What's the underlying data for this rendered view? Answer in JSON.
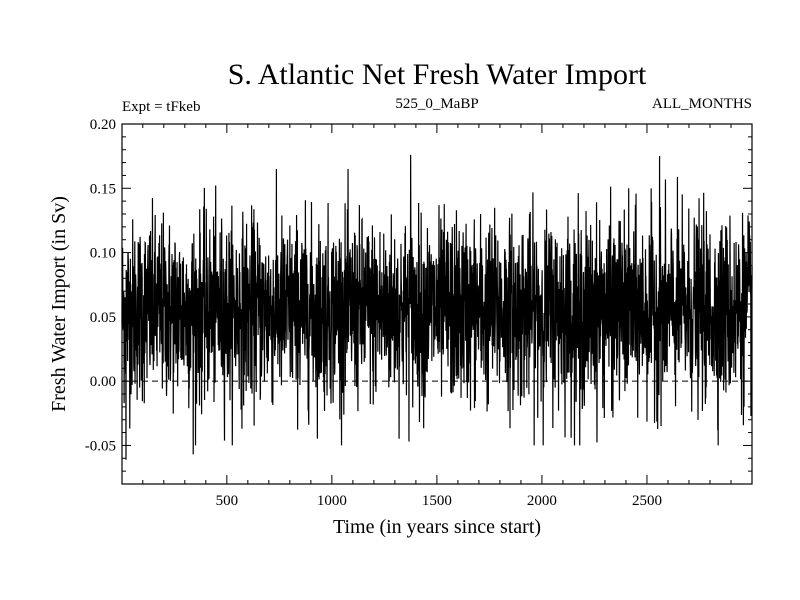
{
  "chart_data": {
    "type": "line",
    "title": "S. Atlantic Net Fresh Water Import",
    "subtitle_left": "Expt = tFkeb",
    "subtitle_center": "525_0_MaBP",
    "subtitle_right": "ALL_MONTHS",
    "xlabel": "Time (in years since start)",
    "ylabel": "Fresh Water Import (in Sv)",
    "xlim": [
      1,
      3000
    ],
    "ylim": [
      -0.08,
      0.2
    ],
    "xticks": [
      500,
      1000,
      1500,
      2000,
      2500
    ],
    "xtick_labels": [
      "500",
      "1000",
      "1500",
      "2000",
      "2500"
    ],
    "yticks": [
      -0.05,
      0.0,
      0.05,
      0.1,
      0.15,
      0.2
    ],
    "ytick_labels": [
      "-0.05",
      "0.00",
      "0.05",
      "0.10",
      "0.15",
      "0.20"
    ],
    "reference_line_y": 0.0,
    "grid": false,
    "line_color": "#000000",
    "series": [
      {
        "approx_mean": 0.055,
        "approx_std": 0.035,
        "n_points": 3000,
        "peaks": [
          {
            "x": 20,
            "y": -0.061
          },
          {
            "x": 340,
            "y": -0.057
          },
          {
            "x": 1375,
            "y": 0.176
          },
          {
            "x": 2180,
            "y": -0.05
          },
          {
            "x": 2560,
            "y": 0.175
          }
        ]
      }
    ]
  }
}
